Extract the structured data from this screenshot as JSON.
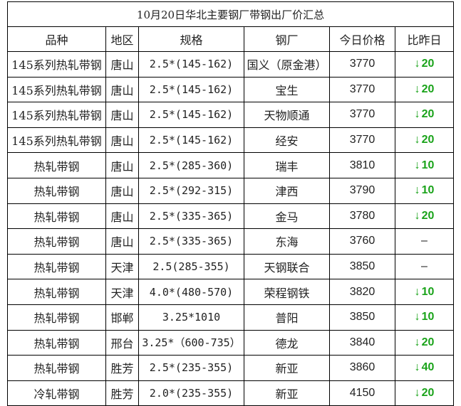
{
  "title": "10月20日华北主要钢厂带钢出厂价汇总",
  "columns": [
    "品种",
    "地区",
    "规格",
    "钢厂",
    "今日价格",
    "比昨日"
  ],
  "colors": {
    "down": "#1aa31a",
    "text": "#222222",
    "border": "#000000"
  },
  "rows": [
    {
      "variety": "145系列热轧带钢",
      "region": "唐山",
      "spec": "2.5*(145-162)",
      "mill": "国义（原金港）",
      "price": "3770",
      "arrow": "↓",
      "change": "20"
    },
    {
      "variety": "145系列热轧带钢",
      "region": "唐山",
      "spec": "2.5*(145-162)",
      "mill": "宝生",
      "price": "3770",
      "arrow": "↓",
      "change": "20"
    },
    {
      "variety": "145系列热轧带钢",
      "region": "唐山",
      "spec": "2.5*(145-162)",
      "mill": "天物顺通",
      "price": "3770",
      "arrow": "↓",
      "change": "20"
    },
    {
      "variety": "145系列热轧带钢",
      "region": "唐山",
      "spec": "2.5*(145-162)",
      "mill": "经安",
      "price": "3770",
      "arrow": "↓",
      "change": "20"
    },
    {
      "variety": "热轧带钢",
      "region": "唐山",
      "spec": "2.5*(285-360)",
      "mill": "瑞丰",
      "price": "3810",
      "arrow": "↓",
      "change": "10"
    },
    {
      "variety": "热轧带钢",
      "region": "唐山",
      "spec": "2.5*(292-315)",
      "mill": "津西",
      "price": "3790",
      "arrow": "↓",
      "change": "10"
    },
    {
      "variety": "热轧带钢",
      "region": "唐山",
      "spec": "2.5*(335-365)",
      "mill": "金马",
      "price": "3780",
      "arrow": "↓",
      "change": "20"
    },
    {
      "variety": "热轧带钢",
      "region": "唐山",
      "spec": "2.5*(335-365)",
      "mill": "东海",
      "price": "3760",
      "arrow": "",
      "change": "–"
    },
    {
      "variety": "热轧带钢",
      "region": "天津",
      "spec": "2.5(285-355)",
      "mill": "天钢联合",
      "price": "3850",
      "arrow": "",
      "change": "–"
    },
    {
      "variety": "热轧带钢",
      "region": "天津",
      "spec": "4.0*(480-570)",
      "mill": "荣程钢铁",
      "price": "3820",
      "arrow": "↓",
      "change": "10"
    },
    {
      "variety": "热轧带钢",
      "region": "邯郸",
      "spec": "3.25*1010",
      "mill": "普阳",
      "price": "3850",
      "arrow": "↓",
      "change": "10"
    },
    {
      "variety": "热轧带钢",
      "region": "邢台",
      "spec": "3.25*（600-735）",
      "mill": "德龙",
      "price": "3840",
      "arrow": "↓",
      "change": "20"
    },
    {
      "variety": "热轧带钢",
      "region": "胜芳",
      "spec": "2.5*(235-355)",
      "mill": "新亚",
      "price": "3860",
      "arrow": "↓",
      "change": "40"
    },
    {
      "variety": "冷轧带钢",
      "region": "胜芳",
      "spec": "2.0*(235-355)",
      "mill": "新亚",
      "price": "4150",
      "arrow": "↓",
      "change": "20"
    }
  ]
}
